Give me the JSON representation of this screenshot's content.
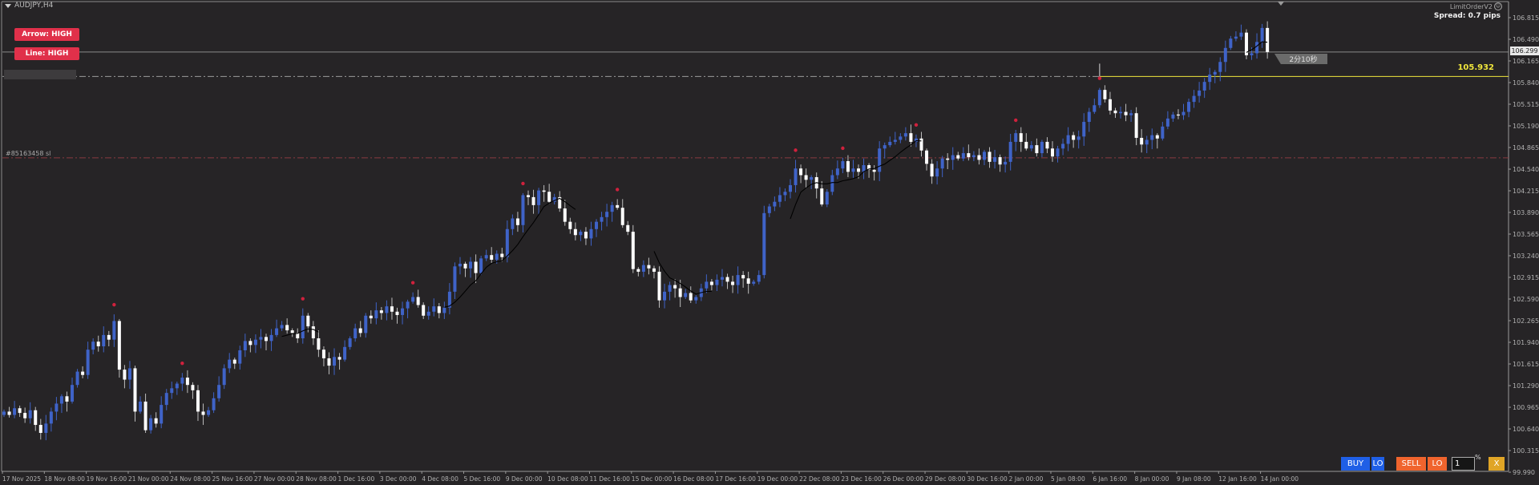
{
  "window": {
    "title": "AUDJPY,H4"
  },
  "buttons": {
    "arrow": "Arrow: HIGH",
    "line": "Line: HIGH"
  },
  "ea": {
    "name": "LimitOrderV2",
    "status_icon": "smiley-icon",
    "spread": "Spread: 0.7 pips"
  },
  "order": {
    "sl_label": "#85163458 sl",
    "sl_price": 104.71
  },
  "ask_line": {
    "label": "105.932",
    "price": 105.932,
    "color": "#f0e63c"
  },
  "bid": {
    "label": "106.299",
    "price": 106.299
  },
  "timer": {
    "label": "2分10秒"
  },
  "trade_panel": {
    "buy": "BUY",
    "buy_lo": "LO",
    "sell": "SELL",
    "sell_lo": "LO",
    "lot_value": "1",
    "lot_unit": "%",
    "close": "X"
  },
  "colors": {
    "background": "#262426",
    "bull": "#3f63c8",
    "bear": "#ffffff",
    "fractal": "#d0213d",
    "ma": "#000000",
    "axis_text": "#b0b0b0"
  },
  "chart_data": {
    "type": "candlestick",
    "symbol": "AUDJPY",
    "timeframe": "H4",
    "ylim": [
      99.99,
      106.815
    ],
    "y_ticks": [
      "106.815",
      "106.490",
      "106.165",
      "105.840",
      "105.515",
      "105.190",
      "104.865",
      "104.540",
      "104.215",
      "103.890",
      "103.565",
      "103.240",
      "102.915",
      "102.590",
      "102.265",
      "101.940",
      "101.615",
      "101.290",
      "100.965",
      "100.640",
      "100.315",
      "99.990"
    ],
    "x_ticks": [
      "17 Nov 2025",
      "18 Nov 08:00",
      "19 Nov 16:00",
      "21 Nov 00:00",
      "24 Nov 08:00",
      "25 Nov 16:00",
      "27 Nov 00:00",
      "28 Nov 08:00",
      "1 Dec 16:00",
      "3 Dec 00:00",
      "4 Dec 08:00",
      "5 Dec 16:00",
      "9 Dec 00:00",
      "10 Dec 08:00",
      "11 Dec 16:00",
      "15 Dec 00:00",
      "16 Dec 08:00",
      "17 Dec 16:00",
      "19 Dec 00:00",
      "22 Dec 08:00",
      "23 Dec 16:00",
      "26 Dec 00:00",
      "29 Dec 08:00",
      "30 Dec 16:00",
      "2 Jan 00:00",
      "5 Jan 08:00",
      "6 Jan 16:00",
      "8 Jan 00:00",
      "9 Jan 08:00",
      "12 Jan 16:00",
      "14 Jan 00:00"
    ],
    "closes": [
      100.9,
      100.85,
      100.95,
      100.88,
      100.8,
      100.92,
      100.7,
      100.58,
      100.72,
      100.9,
      101.02,
      101.13,
      101.05,
      101.3,
      101.5,
      101.45,
      101.83,
      101.95,
      101.88,
      102.05,
      101.98,
      102.26,
      101.53,
      101.38,
      101.55,
      100.9,
      101.05,
      100.62,
      100.8,
      100.72,
      101.0,
      101.18,
      101.25,
      101.32,
      101.41,
      101.3,
      101.22,
      100.9,
      100.85,
      100.92,
      101.1,
      101.3,
      101.55,
      101.68,
      101.62,
      101.82,
      101.96,
      101.9,
      101.98,
      102.02,
      101.96,
      102.05,
      102.15,
      102.2,
      102.12,
      102.08,
      102.0,
      102.34,
      102.18,
      102.0,
      101.83,
      101.7,
      101.59,
      101.72,
      101.68,
      101.87,
      102.0,
      102.15,
      102.08,
      102.34,
      102.3,
      102.42,
      102.38,
      102.48,
      102.4,
      102.35,
      102.45,
      102.55,
      102.62,
      102.5,
      102.34,
      102.4,
      102.48,
      102.38,
      102.46,
      102.7,
      103.08,
      103.12,
      103.05,
      103.15,
      102.98,
      103.2,
      103.25,
      103.18,
      103.27,
      103.22,
      103.64,
      103.8,
      103.7,
      104.15,
      104.12,
      104.0,
      104.22,
      104.2,
      104.05,
      104.12,
      103.95,
      103.75,
      103.64,
      103.55,
      103.6,
      103.5,
      103.64,
      103.75,
      103.82,
      103.9,
      104.0,
      103.96,
      103.7,
      103.6,
      103.04,
      103.0,
      103.1,
      103.05,
      103.0,
      102.57,
      102.7,
      102.8,
      102.75,
      102.62,
      102.68,
      102.57,
      102.62,
      102.75,
      102.85,
      102.8,
      102.88,
      102.92,
      102.85,
      102.8,
      102.95,
      102.9,
      102.82,
      102.85,
      102.95,
      103.88,
      103.98,
      104.05,
      104.15,
      104.2,
      104.3,
      104.55,
      104.45,
      104.38,
      104.42,
      104.25,
      104.01,
      104.2,
      104.45,
      104.55,
      104.66,
      104.5,
      104.55,
      104.5,
      104.6,
      104.53,
      104.5,
      104.85,
      104.9,
      104.95,
      104.98,
      105.03,
      105.08,
      104.95,
      105.0,
      104.82,
      104.62,
      104.43,
      104.55,
      104.7,
      104.68,
      104.75,
      104.7,
      104.78,
      104.72,
      104.75,
      104.68,
      104.8,
      104.65,
      104.72,
      104.61,
      104.65,
      104.95,
      105.08,
      104.95,
      104.85,
      104.9,
      104.78,
      104.95,
      104.85,
      104.73,
      104.85,
      104.92,
      105.05,
      104.98,
      105.03,
      105.25,
      105.4,
      105.5,
      105.73,
      105.59,
      105.42,
      105.38,
      105.4,
      105.35,
      105.38,
      105.01,
      104.91,
      104.98,
      105.05,
      105.0,
      105.18,
      105.3,
      105.36,
      105.35,
      105.4,
      105.55,
      105.64,
      105.72,
      105.85,
      105.96,
      106.0,
      106.15,
      106.36,
      106.5,
      106.53,
      106.59,
      106.25,
      106.28,
      106.45,
      106.66,
      106.299
    ],
    "fractal_high_bars": [
      21,
      34,
      57,
      78,
      99,
      117,
      151,
      160,
      174,
      193,
      209
    ],
    "ma_segments": [
      [
        53,
        60
      ],
      [
        84,
        109
      ],
      [
        124,
        135
      ],
      [
        150,
        175
      ],
      [
        237,
        241
      ]
    ]
  }
}
